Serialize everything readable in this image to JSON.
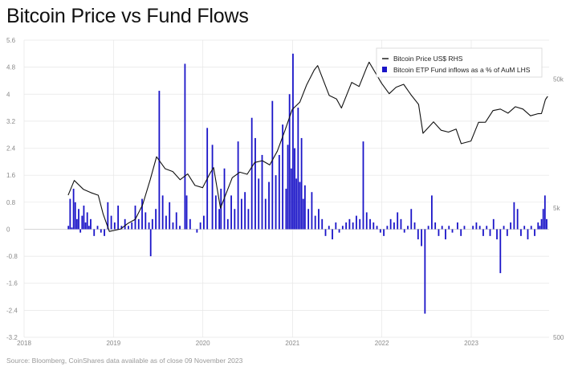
{
  "title": "Bitcoin Price vs Fund Flows",
  "source": "Source: Bloomberg, CoinShares data available as of close 09 November 2023",
  "colors": {
    "price_line": "#111111",
    "flow_bars": "#1a14c8",
    "grid": "#e6e6e6",
    "zero_line": "#bdbdbd"
  },
  "chart_data": {
    "type": "bar+line",
    "title": "Bitcoin Price vs Fund Flows",
    "legend_position": "top-right",
    "grid": true,
    "x_axis": {
      "type": "date",
      "range": [
        "2018-01-01",
        "2023-11-15"
      ],
      "tick_labels": [
        "2018",
        "2019",
        "2020",
        "2021",
        "2022",
        "2023"
      ]
    },
    "y_left": {
      "tick_labels": [
        "5.6",
        "4.8",
        "4",
        "3.2",
        "2.4",
        "1.6",
        "0.8",
        "0",
        "-0.8",
        "-1.6",
        "-2.4",
        "-3.2"
      ],
      "range": [
        -3.2,
        5.6
      ]
    },
    "y_right": {
      "scale": "log",
      "tick_labels": [
        "50k",
        "5k",
        "500"
      ],
      "range": [
        500,
        100000
      ]
    },
    "series": [
      {
        "name": "Bitcoin Price US$ RHS",
        "kind": "line",
        "axis": "right",
        "points": [
          [
            "2018-06-30",
            6300
          ],
          [
            "2018-07-25",
            8200
          ],
          [
            "2018-08-31",
            7000
          ],
          [
            "2018-09-30",
            6600
          ],
          [
            "2018-10-31",
            6300
          ],
          [
            "2018-11-20",
            4500
          ],
          [
            "2018-12-15",
            3300
          ],
          [
            "2019-01-31",
            3450
          ],
          [
            "2019-02-28",
            3800
          ],
          [
            "2019-03-31",
            4100
          ],
          [
            "2019-04-30",
            5300
          ],
          [
            "2019-05-31",
            8300
          ],
          [
            "2019-06-26",
            12500
          ],
          [
            "2019-07-31",
            10100
          ],
          [
            "2019-08-31",
            9600
          ],
          [
            "2019-09-30",
            8300
          ],
          [
            "2019-10-31",
            9200
          ],
          [
            "2019-11-30",
            7500
          ],
          [
            "2019-12-31",
            7200
          ],
          [
            "2020-01-31",
            9350
          ],
          [
            "2020-02-14",
            10300
          ],
          [
            "2020-03-13",
            5000
          ],
          [
            "2020-04-30",
            8600
          ],
          [
            "2020-05-31",
            9500
          ],
          [
            "2020-06-30",
            9150
          ],
          [
            "2020-07-31",
            11300
          ],
          [
            "2020-08-31",
            11650
          ],
          [
            "2020-09-30",
            10800
          ],
          [
            "2020-10-31",
            13800
          ],
          [
            "2020-11-30",
            19700
          ],
          [
            "2020-12-31",
            29000
          ],
          [
            "2021-01-31",
            33100
          ],
          [
            "2021-02-28",
            45100
          ],
          [
            "2021-03-31",
            58900
          ],
          [
            "2021-04-14",
            63500
          ],
          [
            "2021-05-31",
            37300
          ],
          [
            "2021-06-30",
            35000
          ],
          [
            "2021-07-20",
            29800
          ],
          [
            "2021-08-31",
            47100
          ],
          [
            "2021-09-30",
            43800
          ],
          [
            "2021-10-31",
            61300
          ],
          [
            "2021-11-10",
            67500
          ],
          [
            "2021-12-31",
            46300
          ],
          [
            "2022-01-31",
            38500
          ],
          [
            "2022-02-28",
            43200
          ],
          [
            "2022-03-31",
            45500
          ],
          [
            "2022-04-30",
            37700
          ],
          [
            "2022-05-31",
            31800
          ],
          [
            "2022-06-18",
            19000
          ],
          [
            "2022-07-31",
            23300
          ],
          [
            "2022-08-31",
            20050
          ],
          [
            "2022-09-30",
            19400
          ],
          [
            "2022-10-31",
            20500
          ],
          [
            "2022-11-21",
            15800
          ],
          [
            "2022-12-31",
            16550
          ],
          [
            "2023-01-31",
            23100
          ],
          [
            "2023-02-28",
            23150
          ],
          [
            "2023-03-31",
            28500
          ],
          [
            "2023-04-30",
            29250
          ],
          [
            "2023-05-31",
            27200
          ],
          [
            "2023-06-30",
            30500
          ],
          [
            "2023-07-31",
            29250
          ],
          [
            "2023-08-31",
            25950
          ],
          [
            "2023-09-30",
            26950
          ],
          [
            "2023-10-15",
            27000
          ],
          [
            "2023-10-31",
            34650
          ],
          [
            "2023-11-09",
            36700
          ]
        ]
      },
      {
        "name": "Bitcoin ETP Fund inflows as a % of AuM LHS",
        "kind": "bar",
        "axis": "left",
        "points": [
          [
            "2018-07-01",
            0.1
          ],
          [
            "2018-07-08",
            0.9
          ],
          [
            "2018-07-15",
            0.05
          ],
          [
            "2018-07-22",
            1.2
          ],
          [
            "2018-07-29",
            0.8
          ],
          [
            "2018-08-05",
            0.3
          ],
          [
            "2018-08-12",
            0.6
          ],
          [
            "2018-08-19",
            -0.1
          ],
          [
            "2018-08-26",
            0.4
          ],
          [
            "2018-09-02",
            0.7
          ],
          [
            "2018-09-09",
            0.2
          ],
          [
            "2018-09-16",
            0.5
          ],
          [
            "2018-09-23",
            0.1
          ],
          [
            "2018-09-30",
            0.3
          ],
          [
            "2018-10-14",
            -0.2
          ],
          [
            "2018-10-28",
            0.1
          ],
          [
            "2018-11-11",
            -0.1
          ],
          [
            "2018-11-25",
            -0.2
          ],
          [
            "2018-12-09",
            0.8
          ],
          [
            "2018-12-23",
            0.4
          ],
          [
            "2019-01-06",
            0.2
          ],
          [
            "2019-01-20",
            0.7
          ],
          [
            "2019-02-03",
            0.1
          ],
          [
            "2019-02-17",
            0.3
          ],
          [
            "2019-03-03",
            0.1
          ],
          [
            "2019-03-17",
            0.2
          ],
          [
            "2019-03-31",
            0.7
          ],
          [
            "2019-04-14",
            0.3
          ],
          [
            "2019-04-28",
            0.9
          ],
          [
            "2019-05-12",
            0.5
          ],
          [
            "2019-05-26",
            0.2
          ],
          [
            "2019-06-02",
            -0.8
          ],
          [
            "2019-06-09",
            0.3
          ],
          [
            "2019-06-23",
            0.6
          ],
          [
            "2019-07-07",
            4.1
          ],
          [
            "2019-07-21",
            1.0
          ],
          [
            "2019-08-04",
            0.4
          ],
          [
            "2019-08-18",
            0.8
          ],
          [
            "2019-09-01",
            0.2
          ],
          [
            "2019-09-15",
            0.5
          ],
          [
            "2019-09-29",
            0.1
          ],
          [
            "2019-10-20",
            4.9
          ],
          [
            "2019-10-27",
            1.0
          ],
          [
            "2019-11-10",
            0.3
          ],
          [
            "2019-12-08",
            -0.1
          ],
          [
            "2019-12-22",
            0.2
          ],
          [
            "2020-01-05",
            0.4
          ],
          [
            "2020-01-19",
            3.0
          ],
          [
            "2020-02-09",
            2.5
          ],
          [
            "2020-02-23",
            1.0
          ],
          [
            "2020-03-08",
            0.6
          ],
          [
            "2020-03-15",
            1.2
          ],
          [
            "2020-03-29",
            1.8
          ],
          [
            "2020-04-12",
            0.3
          ],
          [
            "2020-04-26",
            1.0
          ],
          [
            "2020-05-10",
            0.6
          ],
          [
            "2020-05-24",
            2.6
          ],
          [
            "2020-06-07",
            0.9
          ],
          [
            "2020-06-21",
            1.1
          ],
          [
            "2020-07-05",
            0.6
          ],
          [
            "2020-07-19",
            3.3
          ],
          [
            "2020-08-02",
            2.7
          ],
          [
            "2020-08-16",
            1.5
          ],
          [
            "2020-08-30",
            2.2
          ],
          [
            "2020-09-13",
            0.9
          ],
          [
            "2020-09-27",
            1.4
          ],
          [
            "2020-10-11",
            3.8
          ],
          [
            "2020-10-25",
            1.6
          ],
          [
            "2020-11-08",
            2.2
          ],
          [
            "2020-11-22",
            3.1
          ],
          [
            "2020-12-06",
            1.2
          ],
          [
            "2020-12-13",
            2.5
          ],
          [
            "2020-12-20",
            4.0
          ],
          [
            "2020-12-27",
            1.8
          ],
          [
            "2021-01-03",
            5.2
          ],
          [
            "2021-01-10",
            2.4
          ],
          [
            "2021-01-17",
            1.5
          ],
          [
            "2021-01-24",
            3.6
          ],
          [
            "2021-01-31",
            1.4
          ],
          [
            "2021-02-07",
            2.7
          ],
          [
            "2021-02-14",
            0.9
          ],
          [
            "2021-02-21",
            1.3
          ],
          [
            "2021-03-07",
            0.6
          ],
          [
            "2021-03-21",
            1.1
          ],
          [
            "2021-04-04",
            0.4
          ],
          [
            "2021-04-18",
            0.6
          ],
          [
            "2021-05-02",
            0.3
          ],
          [
            "2021-05-16",
            -0.2
          ],
          [
            "2021-05-30",
            0.1
          ],
          [
            "2021-06-13",
            -0.3
          ],
          [
            "2021-06-27",
            0.2
          ],
          [
            "2021-07-11",
            -0.1
          ],
          [
            "2021-07-25",
            0.1
          ],
          [
            "2021-08-08",
            0.2
          ],
          [
            "2021-08-22",
            0.3
          ],
          [
            "2021-09-05",
            0.2
          ],
          [
            "2021-09-19",
            0.4
          ],
          [
            "2021-10-03",
            0.3
          ],
          [
            "2021-10-17",
            2.6
          ],
          [
            "2021-10-31",
            0.5
          ],
          [
            "2021-11-14",
            0.3
          ],
          [
            "2021-11-28",
            0.2
          ],
          [
            "2021-12-12",
            0.1
          ],
          [
            "2021-12-26",
            -0.1
          ],
          [
            "2022-01-09",
            -0.2
          ],
          [
            "2022-01-23",
            0.1
          ],
          [
            "2022-02-06",
            0.3
          ],
          [
            "2022-02-20",
            0.2
          ],
          [
            "2022-03-06",
            0.5
          ],
          [
            "2022-03-20",
            0.3
          ],
          [
            "2022-04-03",
            -0.1
          ],
          [
            "2022-04-17",
            0.1
          ],
          [
            "2022-05-01",
            0.6
          ],
          [
            "2022-05-15",
            0.2
          ],
          [
            "2022-05-29",
            -0.3
          ],
          [
            "2022-06-12",
            -0.5
          ],
          [
            "2022-06-26",
            -2.5
          ],
          [
            "2022-07-10",
            0.1
          ],
          [
            "2022-07-24",
            1.0
          ],
          [
            "2022-08-07",
            0.2
          ],
          [
            "2022-08-21",
            -0.2
          ],
          [
            "2022-09-04",
            0.1
          ],
          [
            "2022-09-18",
            -0.3
          ],
          [
            "2022-10-02",
            0.1
          ],
          [
            "2022-10-16",
            -0.1
          ],
          [
            "2022-11-06",
            0.2
          ],
          [
            "2022-11-20",
            -0.2
          ],
          [
            "2022-12-04",
            0.1
          ],
          [
            "2023-01-08",
            0.1
          ],
          [
            "2023-01-22",
            0.2
          ],
          [
            "2023-02-05",
            0.1
          ],
          [
            "2023-02-19",
            -0.2
          ],
          [
            "2023-03-05",
            0.1
          ],
          [
            "2023-03-19",
            -0.2
          ],
          [
            "2023-04-02",
            0.3
          ],
          [
            "2023-04-16",
            -0.3
          ],
          [
            "2023-04-30",
            -1.3
          ],
          [
            "2023-05-14",
            0.1
          ],
          [
            "2023-05-28",
            -0.2
          ],
          [
            "2023-06-11",
            0.2
          ],
          [
            "2023-06-25",
            0.8
          ],
          [
            "2023-07-09",
            0.6
          ],
          [
            "2023-07-23",
            -0.2
          ],
          [
            "2023-08-06",
            0.1
          ],
          [
            "2023-08-20",
            -0.3
          ],
          [
            "2023-09-03",
            0.1
          ],
          [
            "2023-09-17",
            -0.2
          ],
          [
            "2023-10-01",
            0.2
          ],
          [
            "2023-10-08",
            0.1
          ],
          [
            "2023-10-15",
            0.3
          ],
          [
            "2023-10-22",
            0.6
          ],
          [
            "2023-10-29",
            1.0
          ],
          [
            "2023-11-05",
            0.3
          ]
        ]
      }
    ]
  }
}
